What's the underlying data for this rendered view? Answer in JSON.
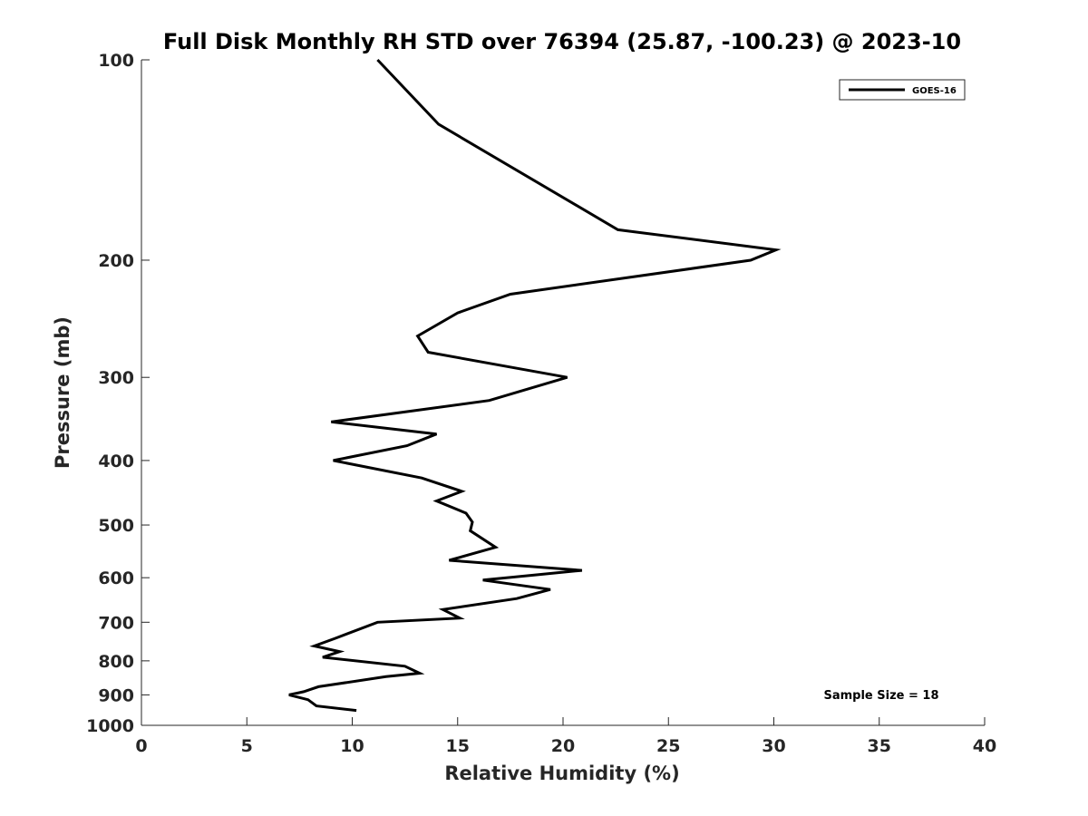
{
  "chart_data": {
    "type": "line",
    "title": "Full Disk Monthly RH STD over 76394 (25.87, -100.23) @ 2023-10",
    "xlabel": "Relative Humidity (%)",
    "ylabel": "Pressure (mb)",
    "xlim": [
      0,
      40
    ],
    "ylim": [
      100,
      1000
    ],
    "y_scale": "log",
    "y_reversed": true,
    "xticks": [
      0,
      5,
      10,
      15,
      20,
      25,
      30,
      35,
      40
    ],
    "yticks": [
      100,
      200,
      300,
      400,
      500,
      600,
      700,
      800,
      900,
      1000
    ],
    "grid": false,
    "legend_position": "top-right",
    "series": [
      {
        "name": "GOES-16",
        "color": "#000000",
        "points": [
          [
            11.2,
            100
          ],
          [
            14.1,
            125
          ],
          [
            22.6,
            180
          ],
          [
            30.1,
            193
          ],
          [
            28.9,
            200
          ],
          [
            17.5,
            225
          ],
          [
            15.0,
            240
          ],
          [
            13.1,
            260
          ],
          [
            13.6,
            275
          ],
          [
            20.2,
            300
          ],
          [
            16.5,
            325
          ],
          [
            9.0,
            350
          ],
          [
            14.0,
            365
          ],
          [
            12.6,
            380
          ],
          [
            9.1,
            400
          ],
          [
            13.3,
            425
          ],
          [
            15.2,
            445
          ],
          [
            14.0,
            460
          ],
          [
            15.4,
            480
          ],
          [
            15.7,
            495
          ],
          [
            15.6,
            510
          ],
          [
            16.8,
            540
          ],
          [
            14.6,
            565
          ],
          [
            20.9,
            585
          ],
          [
            16.2,
            605
          ],
          [
            19.4,
            625
          ],
          [
            17.8,
            645
          ],
          [
            14.3,
            670
          ],
          [
            15.1,
            690
          ],
          [
            11.2,
            700
          ],
          [
            9.2,
            740
          ],
          [
            8.2,
            760
          ],
          [
            9.4,
            775
          ],
          [
            8.6,
            790
          ],
          [
            12.5,
            815
          ],
          [
            13.2,
            835
          ],
          [
            11.6,
            845
          ],
          [
            8.4,
            875
          ],
          [
            7.7,
            890
          ],
          [
            7.0,
            900
          ],
          [
            7.9,
            915
          ],
          [
            8.3,
            935
          ],
          [
            10.2,
            950
          ]
        ]
      }
    ],
    "annotation": "Sample Size = 18"
  }
}
